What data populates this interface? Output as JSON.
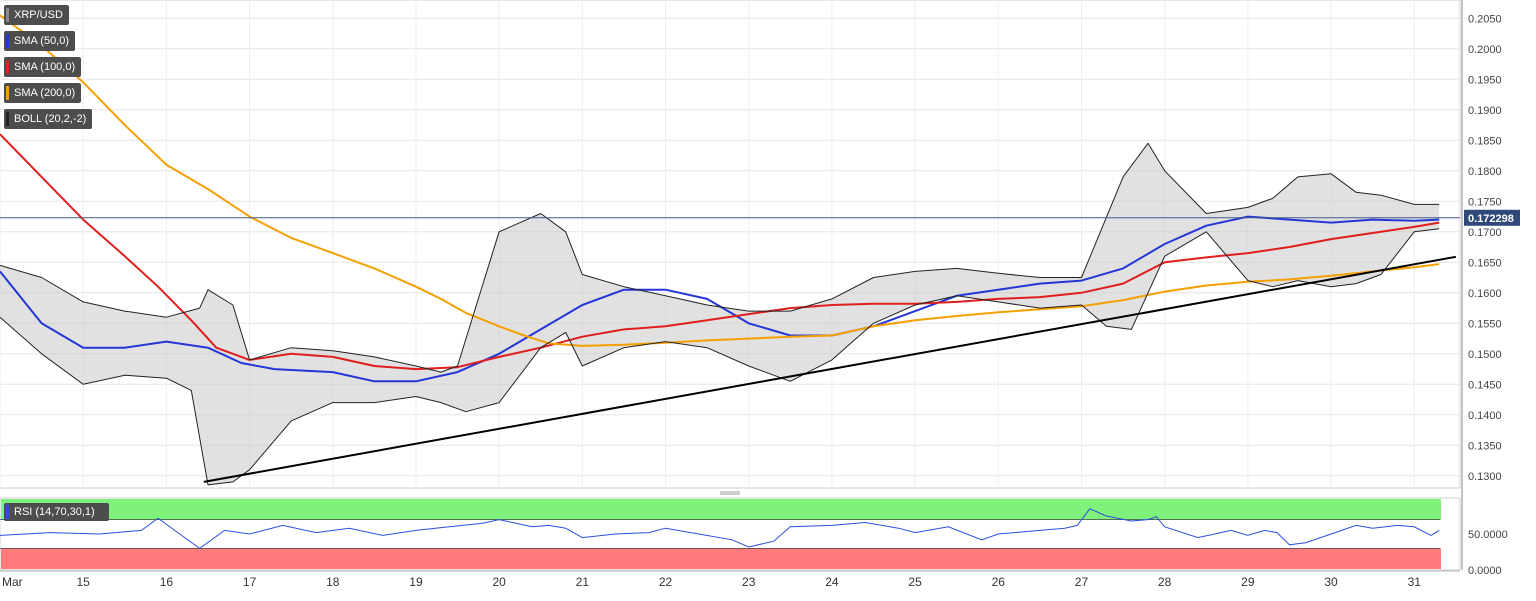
{
  "legend": [
    {
      "label": "XRP/USD",
      "color": "#888888"
    },
    {
      "label": "SMA (50,0)",
      "color": "#2436d6"
    },
    {
      "label": "SMA (100,0)",
      "color": "#e01e1e"
    },
    {
      "label": "SMA (200,0)",
      "color": "#f5a000"
    },
    {
      "label": "BOLL (20,2,-2)",
      "color": "#222222"
    }
  ],
  "rsi_legend": {
    "label": "RSI (14,70,30,1)",
    "color": "#2c4ee0"
  },
  "price_marker": "0.172298",
  "chart_data": [
    {
      "type": "line",
      "panel": "price",
      "title": "",
      "symbol": "XRP/USD",
      "ylim": [
        0.128,
        0.208
      ],
      "y_ticks": [
        "0.2050",
        "0.2000",
        "0.1950",
        "0.1900",
        "0.1850",
        "0.1800",
        "0.1750",
        "0.1700",
        "0.1650",
        "0.1600",
        "0.1550",
        "0.1500",
        "0.1450",
        "0.1400",
        "0.1350",
        "0.1300"
      ],
      "x_ticks": [
        "Mar",
        "15",
        "16",
        "17",
        "18",
        "19",
        "20",
        "21",
        "22",
        "23",
        "24",
        "25",
        "26",
        "27",
        "28",
        "29",
        "30",
        "31"
      ],
      "grid": true,
      "last_price": 0.172298,
      "series": [
        {
          "name": "SMA (50,0)",
          "color": "#2436d6",
          "x": [
            14.0,
            14.5,
            15.0,
            15.5,
            16.0,
            16.5,
            16.9,
            17.3,
            18.0,
            18.5,
            19.0,
            19.5,
            20.0,
            20.5,
            21.0,
            21.5,
            22.0,
            22.5,
            23.0,
            23.5,
            24.0,
            24.5,
            25.0,
            25.5,
            26.0,
            26.5,
            27.0,
            27.5,
            28.0,
            28.5,
            29.0,
            29.5,
            30.0,
            30.5,
            31.0,
            31.3
          ],
          "values": [
            0.1635,
            0.155,
            0.151,
            0.151,
            0.152,
            0.151,
            0.1485,
            0.1475,
            0.147,
            0.1455,
            0.1455,
            0.147,
            0.15,
            0.154,
            0.158,
            0.1605,
            0.1605,
            0.159,
            0.155,
            0.153,
            0.153,
            0.1545,
            0.157,
            0.1595,
            0.1605,
            0.1615,
            0.162,
            0.164,
            0.168,
            0.171,
            0.1725,
            0.172,
            0.1715,
            0.172,
            0.1718,
            0.172
          ]
        },
        {
          "name": "SMA (100,0)",
          "color": "#e01e1e",
          "x": [
            14.0,
            14.5,
            15.0,
            15.5,
            15.9,
            16.3,
            16.6,
            17.0,
            17.5,
            18.0,
            18.5,
            19.0,
            19.5,
            20.0,
            20.5,
            21.0,
            21.5,
            22.0,
            22.5,
            23.0,
            23.5,
            24.0,
            24.5,
            25.0,
            25.5,
            26.0,
            26.5,
            27.0,
            27.5,
            28.0,
            28.5,
            29.0,
            29.5,
            30.0,
            30.5,
            31.0,
            31.3
          ],
          "values": [
            0.186,
            0.179,
            0.172,
            0.166,
            0.161,
            0.1555,
            0.151,
            0.149,
            0.15,
            0.1495,
            0.148,
            0.1475,
            0.1478,
            0.1495,
            0.151,
            0.1528,
            0.154,
            0.1545,
            0.1555,
            0.1565,
            0.1575,
            0.158,
            0.1582,
            0.1582,
            0.1585,
            0.159,
            0.1593,
            0.16,
            0.1615,
            0.165,
            0.1658,
            0.1665,
            0.1675,
            0.1688,
            0.1698,
            0.1708,
            0.1715
          ]
        },
        {
          "name": "SMA (200,0)",
          "color": "#f5a000",
          "x": [
            14.0,
            14.5,
            15.0,
            15.5,
            16.0,
            16.5,
            17.0,
            17.5,
            18.0,
            18.5,
            19.0,
            19.3,
            19.6,
            20.0,
            20.3,
            20.6,
            21.0,
            21.5,
            22.0,
            22.5,
            23.0,
            23.5,
            24.0,
            24.5,
            25.0,
            25.5,
            26.0,
            26.5,
            27.0,
            27.5,
            28.0,
            28.5,
            29.0,
            29.5,
            30.0,
            30.5,
            31.0,
            31.3
          ],
          "values": [
            0.2055,
            0.2005,
            0.1945,
            0.1875,
            0.181,
            0.177,
            0.1725,
            0.169,
            0.1665,
            0.164,
            0.161,
            0.159,
            0.1567,
            0.1545,
            0.153,
            0.1517,
            0.1513,
            0.1515,
            0.1518,
            0.1522,
            0.1525,
            0.1528,
            0.153,
            0.1545,
            0.1555,
            0.1562,
            0.1568,
            0.1573,
            0.1578,
            0.1588,
            0.1602,
            0.1612,
            0.1618,
            0.1622,
            0.1628,
            0.1635,
            0.1642,
            0.1647
          ]
        },
        {
          "name": "BOLL (20,2,-2)",
          "color": "#222222",
          "x": [
            14.0,
            14.5,
            15.0,
            15.5,
            16.0,
            16.4,
            16.5,
            16.8,
            17.0,
            17.5,
            18.0,
            18.5,
            19.0,
            19.3,
            19.5,
            20.0,
            20.5,
            20.8,
            21.0,
            21.5,
            22.0,
            22.5,
            23.0,
            23.5,
            24.0,
            24.5,
            25.0,
            25.5,
            26.0,
            26.5,
            27.0,
            27.5,
            27.8,
            28.0,
            28.5,
            29.0,
            29.3,
            29.6,
            30.0,
            30.3,
            30.6,
            31.0,
            31.3
          ],
          "values": [
            0.1645,
            0.1625,
            0.1585,
            0.157,
            0.156,
            0.1575,
            0.1605,
            0.158,
            0.149,
            0.151,
            0.1505,
            0.1495,
            0.148,
            0.147,
            0.148,
            0.17,
            0.173,
            0.17,
            0.163,
            0.161,
            0.1595,
            0.158,
            0.157,
            0.157,
            0.159,
            0.1625,
            0.1635,
            0.164,
            0.1632,
            0.1625,
            0.1625,
            0.179,
            0.1845,
            0.18,
            0.173,
            0.174,
            0.1755,
            0.179,
            0.1795,
            0.1765,
            0.176,
            0.1745,
            0.1745
          ]
        },
        {
          "name": "BOLL (20,2,-2)",
          "color": "#222222",
          "x": [
            14.0,
            14.5,
            15.0,
            15.5,
            16.0,
            16.3,
            16.5,
            16.8,
            17.0,
            17.5,
            18.0,
            18.5,
            19.0,
            19.3,
            19.6,
            20.0,
            20.5,
            20.8,
            21.0,
            21.5,
            22.0,
            22.5,
            23.0,
            23.5,
            24.0,
            24.5,
            25.0,
            25.5,
            26.0,
            26.5,
            27.0,
            27.3,
            27.6,
            28.0,
            28.5,
            29.0,
            29.3,
            29.6,
            30.0,
            30.3,
            30.6,
            31.0,
            31.3
          ],
          "values": [
            0.156,
            0.15,
            0.145,
            0.1465,
            0.146,
            0.144,
            0.1285,
            0.129,
            0.131,
            0.139,
            0.142,
            0.142,
            0.143,
            0.142,
            0.1405,
            0.142,
            0.151,
            0.1535,
            0.148,
            0.151,
            0.152,
            0.151,
            0.148,
            0.1455,
            0.149,
            0.155,
            0.158,
            0.1595,
            0.1585,
            0.1575,
            0.158,
            0.1545,
            0.154,
            0.166,
            0.17,
            0.162,
            0.161,
            0.162,
            0.161,
            0.1615,
            0.163,
            0.17,
            0.1705
          ]
        }
      ],
      "trendline": {
        "color": "#000000",
        "x": [
          16.45,
          31.5
        ],
        "values": [
          0.129,
          0.1659
        ]
      }
    },
    {
      "type": "line",
      "panel": "rsi",
      "title": "",
      "ylim": [
        0,
        100
      ],
      "y_ticks": [
        "50.0000",
        "0.0000"
      ],
      "overbought": 70,
      "oversold": 30,
      "series": [
        {
          "name": "RSI (14,70,30,1)",
          "color": "#2c4ee0",
          "x": [
            14.0,
            14.6,
            15.2,
            15.7,
            15.9,
            16.1,
            16.4,
            16.7,
            17.0,
            17.4,
            17.8,
            18.2,
            18.6,
            19.0,
            19.4,
            19.8,
            20.0,
            20.2,
            20.4,
            20.6,
            20.8,
            21.0,
            21.4,
            21.8,
            22.0,
            22.4,
            22.8,
            23.0,
            23.3,
            23.5,
            24.0,
            24.4,
            24.8,
            25.0,
            25.4,
            25.8,
            26.0,
            26.5,
            26.8,
            26.95,
            27.1,
            27.3,
            27.6,
            27.8,
            27.9,
            28.0,
            28.4,
            28.8,
            29.0,
            29.2,
            29.35,
            29.5,
            29.7,
            30.0,
            30.3,
            30.5,
            30.8,
            31.0,
            31.2,
            31.3
          ],
          "values": [
            48,
            52,
            50,
            55,
            72,
            55,
            30,
            55,
            50,
            62,
            52,
            58,
            48,
            55,
            60,
            65,
            70,
            65,
            60,
            62,
            58,
            45,
            50,
            52,
            58,
            50,
            42,
            32,
            40,
            60,
            62,
            66,
            58,
            52,
            60,
            42,
            50,
            55,
            58,
            62,
            85,
            75,
            68,
            70,
            74,
            60,
            45,
            55,
            48,
            55,
            52,
            35,
            38,
            50,
            62,
            58,
            62,
            60,
            48,
            55
          ]
        }
      ]
    }
  ]
}
